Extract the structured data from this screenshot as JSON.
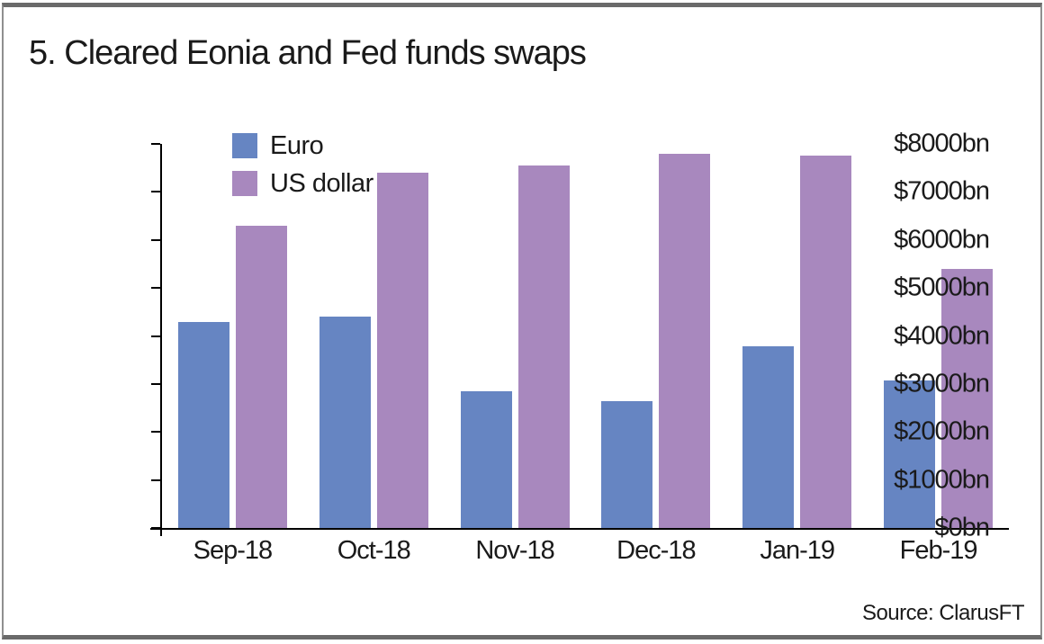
{
  "frame": {
    "title": "5. Cleared Eonia and Fed funds swaps",
    "source": "Source: ClarusFT"
  },
  "colors": {
    "euro": "#6685c2",
    "us_dollar": "#a888be",
    "axis": "#000000",
    "frame_border": "#6a6a6a"
  },
  "chart_data": {
    "type": "bar",
    "title": "5. Cleared Eonia and Fed funds swaps",
    "categories": [
      "Sep-18",
      "Oct-18",
      "Nov-18",
      "Dec-18",
      "Jan-19",
      "Feb-19"
    ],
    "series": [
      {
        "name": "Euro",
        "color": "#6685c2",
        "values": [
          4300,
          4400,
          2850,
          2650,
          3780,
          3080
        ]
      },
      {
        "name": "US dollar",
        "color": "#a888be",
        "values": [
          6300,
          7400,
          7550,
          7800,
          7750,
          5400
        ]
      }
    ],
    "xlabel": "",
    "ylabel": "",
    "ylim": [
      0,
      8000
    ],
    "ytick_step": 1000,
    "yticks": [
      "$8000bn",
      "$7000bn",
      "$6000bn",
      "$5000bn",
      "$4000bn",
      "$3000bn",
      "$2000bn",
      "$1000bn",
      "$0bn"
    ],
    "grid": false,
    "legend_position": "top-left-inside",
    "source": "Source: ClarusFT"
  }
}
